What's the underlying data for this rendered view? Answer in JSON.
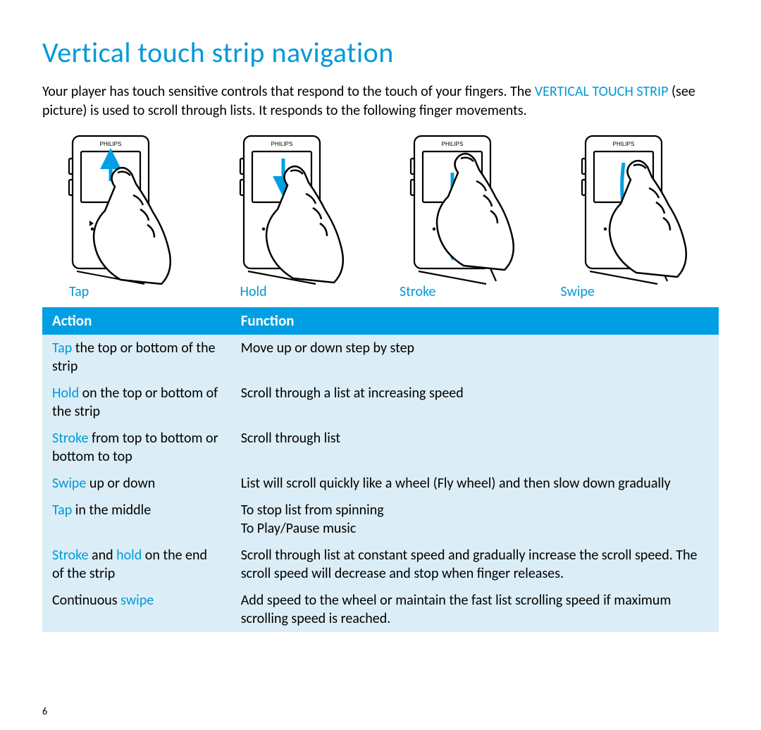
{
  "title": "Vertical touch strip navigation",
  "colors": {
    "accent": "#0099d8",
    "header_bg": "#009fe3",
    "table_tint": "#dbeef7",
    "text": "#000000",
    "background": "#ffffff"
  },
  "intro": {
    "part1": "Your player has touch sensitive controls that respond to the touch of your fingers. The ",
    "term": "VERTICAL TOUCH STRIP",
    "part2": " (see picture) is used to scroll through lists. It responds to the following finger movements."
  },
  "illustrations": [
    {
      "label": "Tap",
      "gesture": "tap"
    },
    {
      "label": "Hold",
      "gesture": "hold"
    },
    {
      "label": "Stroke",
      "gesture": "stroke"
    },
    {
      "label": "Swipe",
      "gesture": "swipe"
    }
  ],
  "table": {
    "headers": {
      "col1": "Action",
      "col2": "Function"
    },
    "rows": [
      {
        "action_parts": [
          {
            "t": "Tap",
            "a": true
          },
          {
            "t": " the top or bottom of the strip",
            "a": false
          }
        ],
        "function": "Move up or down step by step"
      },
      {
        "action_parts": [
          {
            "t": "Hold",
            "a": true
          },
          {
            "t": " on the top or bottom of the strip",
            "a": false
          }
        ],
        "function": "Scroll through a list at increasing speed"
      },
      {
        "action_parts": [
          {
            "t": "Stroke",
            "a": true
          },
          {
            "t": " from top to bottom or bottom to top",
            "a": false
          }
        ],
        "function": "Scroll through list"
      },
      {
        "action_parts": [
          {
            "t": "Swipe",
            "a": true
          },
          {
            "t": " up or down",
            "a": false
          }
        ],
        "function": "List will scroll quickly like a wheel (Fly wheel) and then slow down gradually"
      },
      {
        "action_parts": [
          {
            "t": "Tap",
            "a": true
          },
          {
            "t": " in the middle",
            "a": false
          }
        ],
        "function": "To stop list from spinning\nTo Play/Pause music"
      },
      {
        "action_parts": [
          {
            "t": "Stroke",
            "a": true
          },
          {
            "t": " and ",
            "a": false
          },
          {
            "t": "hold",
            "a": true
          },
          {
            "t": " on the end of the strip",
            "a": false
          }
        ],
        "function": "Scroll through list at constant speed and gradually increase the scroll speed. The scroll speed will decrease and stop when finger releases."
      },
      {
        "action_parts": [
          {
            "t": "Continuous ",
            "a": false
          },
          {
            "t": "swipe",
            "a": true
          }
        ],
        "function": "Add speed to the wheel or maintain the fast list scrolling speed if maximum scrolling speed is reached."
      }
    ]
  },
  "page_number": "6"
}
